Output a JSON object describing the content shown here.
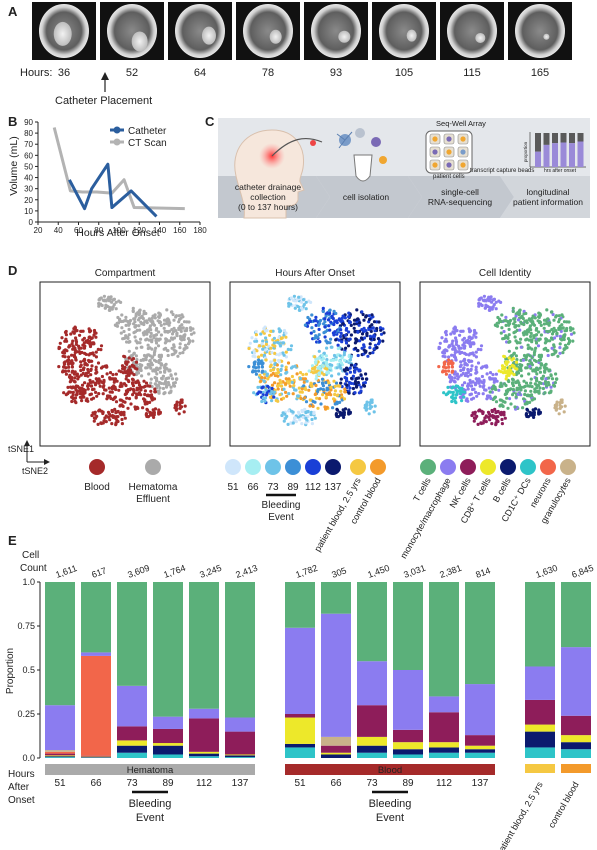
{
  "panels": {
    "A": {
      "letter": "A",
      "hours_label": "Hours:",
      "hours": [
        "36",
        "52",
        "64",
        "78",
        "93",
        "105",
        "115",
        "165"
      ],
      "catheter_note": "Catheter Placement"
    },
    "B": {
      "letter": "B",
      "chart_data": {
        "type": "line",
        "xlabel": "Hours After Onset",
        "ylabel": "Volume (mL)",
        "xlim": [
          20,
          180
        ],
        "ylim": [
          0,
          90
        ],
        "xticks": [
          "20",
          "40",
          "60",
          "80",
          "100",
          "120",
          "140",
          "160",
          "180"
        ],
        "yticks": [
          "0",
          "10",
          "20",
          "30",
          "40",
          "50",
          "60",
          "70",
          "80",
          "90"
        ],
        "legend_position": "top-right",
        "series": [
          {
            "name": "Catheter",
            "color": "#2b5e9e",
            "x": [
              51,
              66,
              73,
              89,
              93,
              112,
              137
            ],
            "y": [
              38,
              12,
              30,
              52,
              13,
              28,
              5
            ]
          },
          {
            "name": "CT Scan",
            "color": "#b3b3b3",
            "x": [
              36,
              52,
              64,
              78,
              93,
              105,
              115,
              165
            ],
            "y": [
              85,
              28,
              27,
              27,
              26,
              38,
              13,
              12
            ]
          }
        ]
      }
    },
    "C": {
      "letter": "C",
      "seqwell_title": "Seq-Well Array",
      "patient_cells": "patient cells",
      "transcript_beads": "transcript capture beads",
      "ylab_small": "proportion",
      "xlab_small": "hrs after onset",
      "steps": [
        {
          "l1": "catheter drainage",
          "l2": "collection",
          "l3": "(0 to 137 hours)"
        },
        {
          "l1": "cell isolation",
          "l2": "",
          "l3": ""
        },
        {
          "l1": "single-cell",
          "l2": "RNA-sequencing",
          "l3": ""
        },
        {
          "l1": "longitudinal",
          "l2": "patient information",
          "l3": ""
        }
      ]
    },
    "D": {
      "letter": "D",
      "titles": [
        "Compartment",
        "Hours After Onset",
        "Cell Identity"
      ],
      "axis_y": "tSNE1",
      "axis_x": "tSNE2",
      "compartment_legend": [
        {
          "label": "Blood",
          "color": "#a52a2a"
        },
        {
          "label": "Hematoma",
          "label2": "Effluent",
          "color": "#aaaaaa"
        }
      ],
      "hours_legend": [
        {
          "label": "51",
          "color": "#cfe6fb"
        },
        {
          "label": "66",
          "color": "#a6eef2"
        },
        {
          "label": "73",
          "color": "#6ec3e8"
        },
        {
          "label": "89",
          "color": "#3c8fd6"
        },
        {
          "label": "112",
          "color": "#1a3fd6"
        },
        {
          "label": "137",
          "color": "#0b1a6e"
        }
      ],
      "bleeding_label": "Bleeding",
      "event_label": "Event",
      "source_legend": [
        {
          "label": "patient blood, 2.5 yrs",
          "color": "#f5c842"
        },
        {
          "label": "control blood",
          "color": "#f39a2b"
        }
      ],
      "cell_legend": [
        {
          "label": "T cells",
          "color": "#5bb07a"
        },
        {
          "label": "monocyte/macrophage",
          "color": "#8b7cf0"
        },
        {
          "label": "NK cells",
          "color": "#8e1d5a"
        },
        {
          "label": "CD8⁺ T cells",
          "color": "#ede82a"
        },
        {
          "label": "B cells",
          "color": "#0b1a6e"
        },
        {
          "label": "CD1C⁺ DCs",
          "color": "#2ec4c8"
        },
        {
          "label": "neurons",
          "color": "#f2664a"
        },
        {
          "label": "granulocytes",
          "color": "#c9b28a"
        }
      ]
    },
    "E": {
      "letter": "E",
      "chart_data": {
        "type": "bar",
        "stacked": true,
        "ylabel": "Proportion",
        "yticks": [
          "0.0",
          "0.25",
          "0.5",
          "0.75",
          "1.0"
        ],
        "ylim": [
          0,
          1
        ],
        "count_label_1": "Cell",
        "count_label_2": "Count",
        "hours_label_1": "Hours",
        "hours_label_2": "After",
        "hours_label_3": "Onset",
        "bleeding_label": "Bleeding",
        "event_label": "Event",
        "stack_order": [
          "CD1C⁺ DCs",
          "B cells",
          "CD8⁺ T cells",
          "NK cells",
          "neurons",
          "granulocytes",
          "monocyte/macrophage",
          "T cells"
        ],
        "colors": [
          "#2ec4c8",
          "#0b1a6e",
          "#ede82a",
          "#8e1d5a",
          "#f2664a",
          "#c9b28a",
          "#8b7cf0",
          "#5bb07a"
        ],
        "groups": [
          {
            "band_label": "Hematoma",
            "band_color": "#aaaaaa",
            "bars": [
              {
                "hour": "51",
                "count": "1,611",
                "values": [
                  0.005,
                  0.005,
                  0.005,
                  0.01,
                  0.01,
                  0.01,
                  0.255,
                  0.7
                ]
              },
              {
                "hour": "66",
                "count": "617",
                "values": [
                  0.002,
                  0.003,
                  0.003,
                  0.005,
                  0.567,
                  0.0,
                  0.02,
                  0.4
                ]
              },
              {
                "hour": "73",
                "count": "3,609",
                "values": [
                  0.03,
                  0.04,
                  0.03,
                  0.08,
                  0.0,
                  0.0,
                  0.23,
                  0.59
                ]
              },
              {
                "hour": "89",
                "count": "1,764",
                "values": [
                  0.02,
                  0.05,
                  0.015,
                  0.08,
                  0.0,
                  0.0,
                  0.07,
                  0.765
                ]
              },
              {
                "hour": "112",
                "count": "3,245",
                "values": [
                  0.01,
                  0.015,
                  0.01,
                  0.19,
                  0.0,
                  0.0,
                  0.055,
                  0.72
                ]
              },
              {
                "hour": "137",
                "count": "2,413",
                "values": [
                  0.005,
                  0.01,
                  0.005,
                  0.13,
                  0.0,
                  0.0,
                  0.08,
                  0.77
                ]
              }
            ]
          },
          {
            "band_label": "Blood",
            "band_color": "#a52a2a",
            "bars": [
              {
                "hour": "51",
                "count": "1,782",
                "values": [
                  0.06,
                  0.02,
                  0.15,
                  0.02,
                  0.0,
                  0.0,
                  0.49,
                  0.26
                ]
              },
              {
                "hour": "66",
                "count": "305",
                "values": [
                  0.0,
                  0.02,
                  0.01,
                  0.04,
                  0.0,
                  0.05,
                  0.7,
                  0.18
                ]
              },
              {
                "hour": "73",
                "count": "1,450",
                "values": [
                  0.03,
                  0.04,
                  0.05,
                  0.18,
                  0.0,
                  0.0,
                  0.25,
                  0.45
                ]
              },
              {
                "hour": "89",
                "count": "3,031",
                "values": [
                  0.02,
                  0.03,
                  0.04,
                  0.07,
                  0.0,
                  0.0,
                  0.34,
                  0.5
                ]
              },
              {
                "hour": "112",
                "count": "2,381",
                "values": [
                  0.03,
                  0.03,
                  0.03,
                  0.17,
                  0.0,
                  0.0,
                  0.09,
                  0.65
                ]
              },
              {
                "hour": "137",
                "count": "814",
                "values": [
                  0.03,
                  0.02,
                  0.02,
                  0.06,
                  0.0,
                  0.0,
                  0.29,
                  0.58
                ]
              }
            ]
          },
          {
            "band_label": "",
            "band_color": "",
            "bars": [
              {
                "hour": "",
                "count": "1,630",
                "values": [
                  0.06,
                  0.09,
                  0.04,
                  0.14,
                  0.0,
                  0.0,
                  0.19,
                  0.48
                ],
                "source_color": "#f5c842",
                "source_label": "patient blood, 2.5 yrs"
              },
              {
                "hour": "",
                "count": "6,845",
                "values": [
                  0.05,
                  0.04,
                  0.04,
                  0.11,
                  0.0,
                  0.0,
                  0.39,
                  0.37
                ],
                "source_color": "#f39a2b",
                "source_label": "control blood"
              }
            ]
          }
        ]
      }
    }
  }
}
